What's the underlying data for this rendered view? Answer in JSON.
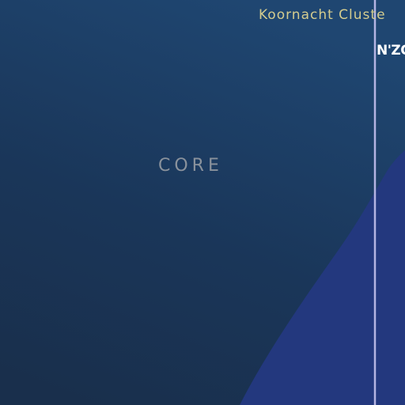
{
  "map": {
    "cluster_label": "Koornacht Cluste",
    "region_label": "CORE",
    "system_label": "N'ZO",
    "colors": {
      "background": "#1b3556",
      "cluster_region": "#23387e",
      "boundary_line": "#b4b4e2",
      "cluster_label": "#d4cc8e",
      "region_label": "#8a929c",
      "system_label": "#ffffff"
    }
  }
}
